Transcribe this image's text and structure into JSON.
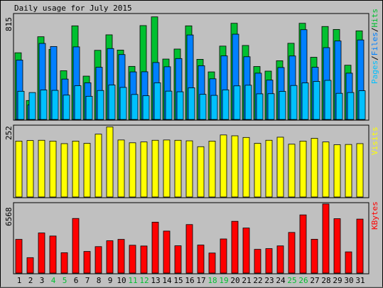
{
  "title": "Daily usage for July 2015",
  "colors": {
    "background": "#c0c0c0",
    "plot_background": "#c0c0c0",
    "hits": "#00c030",
    "files": "#0080ff",
    "pages": "#00c0ff",
    "visits": "#ffff00",
    "kbytes": "#ff0000",
    "weekend_label": "#00c030"
  },
  "chart_data": [
    {
      "type": "bar",
      "name": "hits-files-pages",
      "y_max_label": "815",
      "ylim": [
        0,
        815
      ],
      "side_label": [
        "Pages",
        "/",
        "Files",
        "/",
        "Hits"
      ],
      "categories": [
        "1",
        "2",
        "3",
        "4",
        "5",
        "6",
        "7",
        "8",
        "9",
        "10",
        "11",
        "12",
        "13",
        "14",
        "15",
        "16",
        "17",
        "18",
        "19",
        "20",
        "21",
        "22",
        "23",
        "24",
        "25",
        "26",
        "27",
        "28",
        "29",
        "30",
        "31"
      ],
      "series": [
        {
          "name": "Hits",
          "values": [
            520,
            148,
            645,
            546,
            380,
            730,
            338,
            539,
            660,
            541,
            414,
            732,
            800,
            471,
            549,
            730,
            469,
            371,
            572,
            750,
            577,
            413,
            377,
            458,
            594,
            750,
            485,
            725,
            702,
            423,
            691
          ]
        },
        {
          "name": "Files",
          "values": [
            463,
            113,
            593,
            569,
            315,
            566,
            286,
            407,
            553,
            506,
            371,
            372,
            444,
            411,
            475,
            659,
            419,
            317,
            496,
            665,
            489,
            361,
            307,
            405,
            495,
            700,
            407,
            560,
            612,
            361,
            620
          ]
        },
        {
          "name": "Pages",
          "values": [
            220,
            210,
            230,
            227,
            190,
            263,
            181,
            226,
            269,
            250,
            195,
            185,
            286,
            221,
            216,
            247,
            196,
            188,
            231,
            262,
            267,
            200,
            201,
            219,
            265,
            285,
            297,
            305,
            204,
            210,
            224
          ]
        }
      ]
    },
    {
      "type": "bar",
      "name": "visits",
      "y_max_label": "252",
      "ylim": [
        0,
        252
      ],
      "side_label": [
        "Visits"
      ],
      "categories": [
        "1",
        "2",
        "3",
        "4",
        "5",
        "6",
        "7",
        "8",
        "9",
        "10",
        "11",
        "12",
        "13",
        "14",
        "15",
        "16",
        "17",
        "18",
        "19",
        "20",
        "21",
        "22",
        "23",
        "24",
        "25",
        "26",
        "27",
        "28",
        "29",
        "30",
        "31"
      ],
      "series": [
        {
          "name": "Visits",
          "values": [
            200,
            202,
            203,
            200,
            191,
            200,
            192,
            225,
            251,
            204,
            194,
            197,
            203,
            204,
            203,
            201,
            180,
            200,
            222,
            219,
            213,
            192,
            203,
            214,
            189,
            200,
            210,
            197,
            187,
            188,
            191
          ]
        }
      ]
    },
    {
      "type": "bar",
      "name": "kbytes",
      "y_max_label": "6568",
      "ylim": [
        0,
        6568
      ],
      "side_label": [
        "KBytes"
      ],
      "categories": [
        "1",
        "2",
        "3",
        "4",
        "5",
        "6",
        "7",
        "8",
        "9",
        "10",
        "11",
        "12",
        "13",
        "14",
        "15",
        "16",
        "17",
        "18",
        "19",
        "20",
        "21",
        "22",
        "23",
        "24",
        "25",
        "26",
        "27",
        "28",
        "29",
        "30",
        "31"
      ],
      "series": [
        {
          "name": "KBytes",
          "values": [
            3210,
            1470,
            3820,
            3530,
            1940,
            5200,
            2060,
            2520,
            3080,
            3210,
            2650,
            2580,
            4850,
            4000,
            2600,
            4620,
            2670,
            1910,
            3250,
            4930,
            4290,
            2260,
            2330,
            2590,
            3870,
            5540,
            3220,
            6580,
            5180,
            2020,
            5140
          ]
        }
      ]
    }
  ],
  "x_axis": {
    "weekend_days": [
      "4",
      "5",
      "11",
      "12",
      "18",
      "19",
      "25",
      "26"
    ]
  }
}
